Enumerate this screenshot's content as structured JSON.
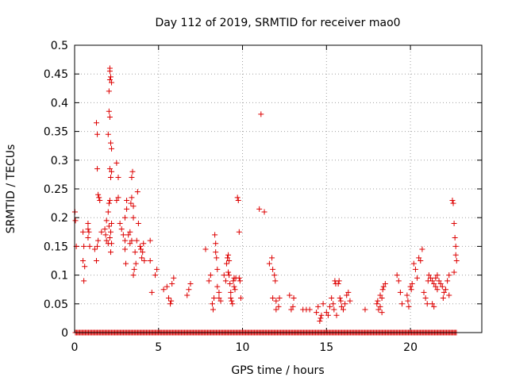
{
  "chart_data": {
    "type": "scatter",
    "title": "Day 112 of 2019, SRMTID for receiver mao0",
    "xlabel": "GPS time / hours",
    "ylabel": "SRMTID / TECUs",
    "xlim": [
      0,
      24.25
    ],
    "ylim": [
      0,
      0.5
    ],
    "x_ticks": [
      0,
      5,
      10,
      15,
      20
    ],
    "x_tick_labels": [
      "0",
      "5",
      "10",
      "15",
      "20"
    ],
    "y_ticks": [
      0,
      0.05,
      0.1,
      0.15,
      0.2,
      0.25,
      0.3,
      0.35,
      0.4,
      0.45,
      0.5
    ],
    "y_tick_labels": [
      "0",
      "0.05",
      "0.1",
      "0.15",
      "0.2",
      "0.25",
      "0.3",
      "0.35",
      "0.4",
      "0.45",
      "0.5"
    ],
    "grid": true,
    "marker": "+",
    "series": [
      {
        "name": "SRMTID",
        "color": "#dd0000",
        "points": [
          [
            0.02,
            0.21
          ],
          [
            0.05,
            0.195
          ],
          [
            0.1,
            0.15
          ],
          [
            0.5,
            0.175
          ],
          [
            0.55,
            0.15
          ],
          [
            0.5,
            0.125
          ],
          [
            0.6,
            0.115
          ],
          [
            0.55,
            0.09
          ],
          [
            0.8,
            0.19
          ],
          [
            0.8,
            0.18
          ],
          [
            0.85,
            0.175
          ],
          [
            0.8,
            0.165
          ],
          [
            0.9,
            0.15
          ],
          [
            1.2,
            0.145
          ],
          [
            1.3,
            0.125
          ],
          [
            1.35,
            0.15
          ],
          [
            1.4,
            0.16
          ],
          [
            1.35,
            0.285
          ],
          [
            1.3,
            0.365
          ],
          [
            1.35,
            0.345
          ],
          [
            1.4,
            0.24
          ],
          [
            1.45,
            0.235
          ],
          [
            1.5,
            0.23
          ],
          [
            1.6,
            0.175
          ],
          [
            1.8,
            0.18
          ],
          [
            1.85,
            0.17
          ],
          [
            1.9,
            0.16
          ],
          [
            1.9,
            0.195
          ],
          [
            2.0,
            0.21
          ],
          [
            2.05,
            0.185
          ],
          [
            2.0,
            0.155
          ],
          [
            2.1,
            0.165
          ],
          [
            2.15,
            0.14
          ],
          [
            2.0,
            0.345
          ],
          [
            2.05,
            0.385
          ],
          [
            2.1,
            0.375
          ],
          [
            2.05,
            0.42
          ],
          [
            2.1,
            0.44
          ],
          [
            2.1,
            0.455
          ],
          [
            2.1,
            0.46
          ],
          [
            2.15,
            0.445
          ],
          [
            2.2,
            0.435
          ],
          [
            2.15,
            0.33
          ],
          [
            2.2,
            0.32
          ],
          [
            2.1,
            0.285
          ],
          [
            2.2,
            0.28
          ],
          [
            2.15,
            0.27
          ],
          [
            2.1,
            0.23
          ],
          [
            2.2,
            0.19
          ],
          [
            2.15,
            0.175
          ],
          [
            2.2,
            0.155
          ],
          [
            2.05,
            0.225
          ],
          [
            2.5,
            0.295
          ],
          [
            2.6,
            0.27
          ],
          [
            2.5,
            0.23
          ],
          [
            2.6,
            0.235
          ],
          [
            2.7,
            0.19
          ],
          [
            2.8,
            0.18
          ],
          [
            2.9,
            0.17
          ],
          [
            3.0,
            0.16
          ],
          [
            3.0,
            0.145
          ],
          [
            3.05,
            0.12
          ],
          [
            3.0,
            0.2
          ],
          [
            3.1,
            0.215
          ],
          [
            3.1,
            0.23
          ],
          [
            3.2,
            0.17
          ],
          [
            3.3,
            0.175
          ],
          [
            3.3,
            0.155
          ],
          [
            3.4,
            0.16
          ],
          [
            3.35,
            0.225
          ],
          [
            3.4,
            0.235
          ],
          [
            3.4,
            0.27
          ],
          [
            3.45,
            0.28
          ],
          [
            3.5,
            0.22
          ],
          [
            3.5,
            0.2
          ],
          [
            3.55,
            0.11
          ],
          [
            3.5,
            0.1
          ],
          [
            3.6,
            0.14
          ],
          [
            3.65,
            0.12
          ],
          [
            3.7,
            0.16
          ],
          [
            3.75,
            0.245
          ],
          [
            3.8,
            0.19
          ],
          [
            3.9,
            0.15
          ],
          [
            3.95,
            0.145
          ],
          [
            4.0,
            0.13
          ],
          [
            4.05,
            0.14
          ],
          [
            4.1,
            0.155
          ],
          [
            4.15,
            0.125
          ],
          [
            4.5,
            0.16
          ],
          [
            4.5,
            0.125
          ],
          [
            4.6,
            0.07
          ],
          [
            4.8,
            0.1
          ],
          [
            4.9,
            0.11
          ],
          [
            5.3,
            0.075
          ],
          [
            5.5,
            0.08
          ],
          [
            5.6,
            0.06
          ],
          [
            5.7,
            0.05
          ],
          [
            5.75,
            0.055
          ],
          [
            5.8,
            0.085
          ],
          [
            5.9,
            0.095
          ],
          [
            6.7,
            0.065
          ],
          [
            6.8,
            0.075
          ],
          [
            6.9,
            0.085
          ],
          [
            7.8,
            0.145
          ],
          [
            8.0,
            0.09
          ],
          [
            8.1,
            0.1
          ],
          [
            8.2,
            0.05
          ],
          [
            8.25,
            0.04
          ],
          [
            8.3,
            0.06
          ],
          [
            8.35,
            0.17
          ],
          [
            8.4,
            0.155
          ],
          [
            8.4,
            0.14
          ],
          [
            8.45,
            0.13
          ],
          [
            8.5,
            0.11
          ],
          [
            8.5,
            0.08
          ],
          [
            8.6,
            0.07
          ],
          [
            8.6,
            0.06
          ],
          [
            8.7,
            0.055
          ],
          [
            8.9,
            0.1
          ],
          [
            9.0,
            0.09
          ],
          [
            9.05,
            0.12
          ],
          [
            9.1,
            0.13
          ],
          [
            9.15,
            0.135
          ],
          [
            9.2,
            0.125
          ],
          [
            9.15,
            0.105
          ],
          [
            9.2,
            0.1
          ],
          [
            9.25,
            0.085
          ],
          [
            9.3,
            0.07
          ],
          [
            9.3,
            0.06
          ],
          [
            9.35,
            0.055
          ],
          [
            9.4,
            0.05
          ],
          [
            9.45,
            0.09
          ],
          [
            9.5,
            0.095
          ],
          [
            9.5,
            0.08
          ],
          [
            9.55,
            0.075
          ],
          [
            9.6,
            0.095
          ],
          [
            9.7,
            0.235
          ],
          [
            9.75,
            0.23
          ],
          [
            9.8,
            0.175
          ],
          [
            9.8,
            0.095
          ],
          [
            9.85,
            0.09
          ],
          [
            9.9,
            0.06
          ],
          [
            11.0,
            0.215
          ],
          [
            11.1,
            0.38
          ],
          [
            11.3,
            0.21
          ],
          [
            11.6,
            0.12
          ],
          [
            11.75,
            0.13
          ],
          [
            11.8,
            0.11
          ],
          [
            11.9,
            0.1
          ],
          [
            11.95,
            0.09
          ],
          [
            11.8,
            0.06
          ],
          [
            12.0,
            0.055
          ],
          [
            12.0,
            0.04
          ],
          [
            12.15,
            0.045
          ],
          [
            12.2,
            0.06
          ],
          [
            12.8,
            0.065
          ],
          [
            12.9,
            0.04
          ],
          [
            13.0,
            0.045
          ],
          [
            13.05,
            0.06
          ],
          [
            13.6,
            0.04
          ],
          [
            13.8,
            0.04
          ],
          [
            14.0,
            0.04
          ],
          [
            14.4,
            0.035
          ],
          [
            14.5,
            0.045
          ],
          [
            14.6,
            0.02
          ],
          [
            14.65,
            0.025
          ],
          [
            14.7,
            0.03
          ],
          [
            14.8,
            0.05
          ],
          [
            15.0,
            0.035
          ],
          [
            15.1,
            0.03
          ],
          [
            15.2,
            0.045
          ],
          [
            15.3,
            0.06
          ],
          [
            15.4,
            0.05
          ],
          [
            15.45,
            0.04
          ],
          [
            15.5,
            0.09
          ],
          [
            15.55,
            0.085
          ],
          [
            15.6,
            0.03
          ],
          [
            15.7,
            0.085
          ],
          [
            15.75,
            0.09
          ],
          [
            15.8,
            0.06
          ],
          [
            15.85,
            0.055
          ],
          [
            15.9,
            0.045
          ],
          [
            16.0,
            0.04
          ],
          [
            16.1,
            0.05
          ],
          [
            16.2,
            0.065
          ],
          [
            16.3,
            0.07
          ],
          [
            16.4,
            0.055
          ],
          [
            17.3,
            0.04
          ],
          [
            18.0,
            0.05
          ],
          [
            18.05,
            0.055
          ],
          [
            18.1,
            0.04
          ],
          [
            18.2,
            0.045
          ],
          [
            18.3,
            0.06
          ],
          [
            18.35,
            0.075
          ],
          [
            18.4,
            0.08
          ],
          [
            18.5,
            0.085
          ],
          [
            18.3,
            0.035
          ],
          [
            18.2,
            0.065
          ],
          [
            19.2,
            0.1
          ],
          [
            19.3,
            0.09
          ],
          [
            19.4,
            0.07
          ],
          [
            19.5,
            0.05
          ],
          [
            19.8,
            0.065
          ],
          [
            19.85,
            0.055
          ],
          [
            19.9,
            0.045
          ],
          [
            20.0,
            0.08
          ],
          [
            20.05,
            0.075
          ],
          [
            20.1,
            0.085
          ],
          [
            20.2,
            0.12
          ],
          [
            20.3,
            0.11
          ],
          [
            20.4,
            0.095
          ],
          [
            20.5,
            0.13
          ],
          [
            20.6,
            0.125
          ],
          [
            20.7,
            0.145
          ],
          [
            20.8,
            0.07
          ],
          [
            20.9,
            0.06
          ],
          [
            21.0,
            0.05
          ],
          [
            21.05,
            0.09
          ],
          [
            21.1,
            0.1
          ],
          [
            21.2,
            0.095
          ],
          [
            21.3,
            0.09
          ],
          [
            21.4,
            0.085
          ],
          [
            21.5,
            0.08
          ],
          [
            21.6,
            0.075
          ],
          [
            21.7,
            0.09
          ],
          [
            21.8,
            0.085
          ],
          [
            21.9,
            0.08
          ],
          [
            21.95,
            0.06
          ],
          [
            21.3,
            0.05
          ],
          [
            21.4,
            0.045
          ],
          [
            21.5,
            0.095
          ],
          [
            21.6,
            0.1
          ],
          [
            22.0,
            0.07
          ],
          [
            22.1,
            0.075
          ],
          [
            22.2,
            0.09
          ],
          [
            22.3,
            0.1
          ],
          [
            22.3,
            0.065
          ],
          [
            22.5,
            0.23
          ],
          [
            22.55,
            0.225
          ],
          [
            22.6,
            0.19
          ],
          [
            22.65,
            0.165
          ],
          [
            22.7,
            0.15
          ],
          [
            22.7,
            0.135
          ],
          [
            22.75,
            0.125
          ],
          [
            22.6,
            0.105
          ]
        ]
      }
    ]
  }
}
